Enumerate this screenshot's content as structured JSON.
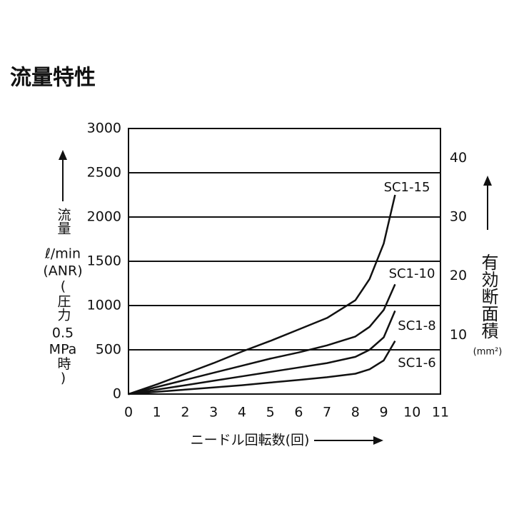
{
  "chart_data": {
    "type": "line",
    "title": "流量特性",
    "x_label": "ニードル回転数(回)",
    "y_label": [
      "流量",
      "ℓ/min",
      "(ANR)",
      "(圧力",
      "0.5",
      "MPa",
      "時)"
    ],
    "y2_label": [
      "有効断面積",
      "(mm²)"
    ],
    "x": [
      0,
      1,
      2,
      3,
      4,
      5,
      6,
      7,
      8,
      8.5,
      9,
      9.4
    ],
    "series": [
      {
        "name": "SC1-15",
        "color": "#111111",
        "values": [
          0,
          110,
          230,
          350,
          480,
          600,
          730,
          860,
          1060,
          1300,
          1700,
          2250
        ]
      },
      {
        "name": "SC1-10",
        "color": "#111111",
        "values": [
          0,
          80,
          160,
          240,
          320,
          400,
          470,
          550,
          650,
          760,
          950,
          1240
        ]
      },
      {
        "name": "SC1-8",
        "color": "#111111",
        "values": [
          0,
          50,
          100,
          150,
          200,
          250,
          300,
          350,
          420,
          500,
          640,
          940
        ]
      },
      {
        "name": "SC1-6",
        "color": "#111111",
        "values": [
          0,
          25,
          50,
          75,
          100,
          130,
          160,
          190,
          230,
          280,
          380,
          600
        ]
      }
    ],
    "xlim": [
      0,
      11
    ],
    "xticks": [
      0,
      1,
      2,
      3,
      4,
      5,
      6,
      7,
      8,
      9,
      10,
      11
    ],
    "ylim": [
      0,
      3000
    ],
    "yticks": [
      0,
      500,
      1000,
      1500,
      2000,
      2500,
      3000
    ],
    "y2lim": [
      0,
      45
    ],
    "y2ticks": [
      10,
      20,
      30,
      40
    ],
    "grid": true
  }
}
